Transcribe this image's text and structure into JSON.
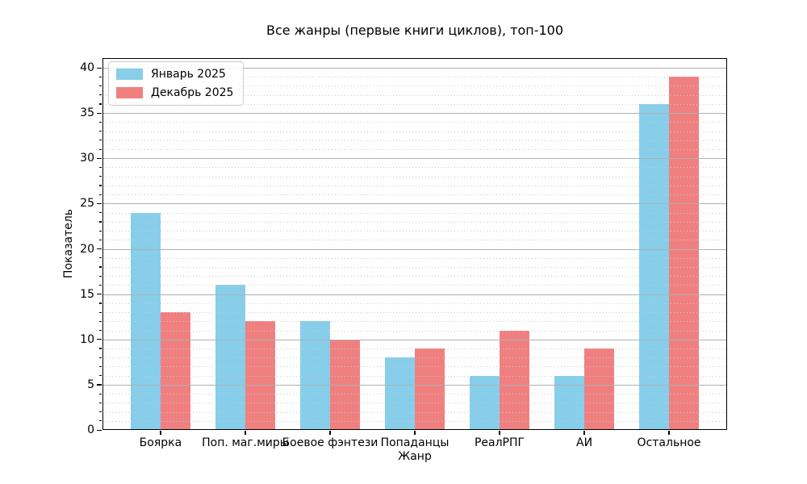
{
  "chart_data": {
    "type": "bar",
    "title": "Все жанры (первые книги циклов), топ-100",
    "xlabel": "Жанр",
    "ylabel": "Показатель",
    "categories": [
      "Боярка",
      "Поп. маг.миры",
      "Боевое фэнтези",
      "Попаданцы",
      "РеалРПГ",
      "АИ",
      "Остальное"
    ],
    "series": [
      {
        "name": "Январь 2025",
        "color": "#87CEEB",
        "values": [
          24,
          16,
          12,
          8,
          6,
          6,
          36
        ]
      },
      {
        "name": "Декабрь 2025",
        "color": "#F08080",
        "values": [
          13,
          12,
          10,
          9,
          11,
          9,
          39
        ]
      }
    ],
    "ylim": [
      0,
      41
    ],
    "yticks": [
      0,
      5,
      10,
      15,
      20,
      25,
      30,
      35,
      40
    ],
    "minor_grid_step": 1,
    "grid": "major-solid-minor-dotted-above-bars",
    "legend_position": "upper-left",
    "bar_width_units": 0.35
  }
}
